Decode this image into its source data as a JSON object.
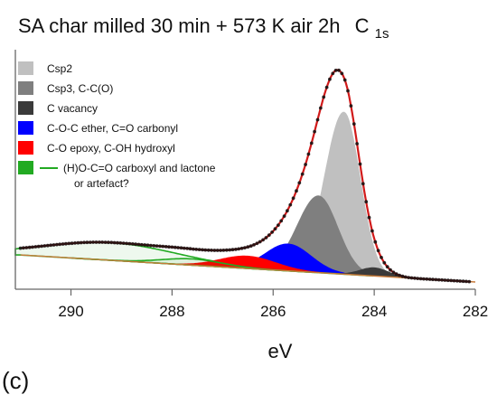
{
  "chart_data": {
    "type": "area",
    "title": "SA char milled 30 min + 573 K air 2h",
    "title_subscript": {
      "main": "C",
      "sub": "1s"
    },
    "panel_label": "(c)",
    "xlabel": "eV",
    "ylabel": "",
    "x_reversed": true,
    "xlim": [
      291.1,
      282.0
    ],
    "ylim": [
      0,
      1.0
    ],
    "x_ticks": [
      290,
      288,
      286,
      284,
      282
    ],
    "x_tick_labels": [
      "290",
      "288",
      "286",
      "284",
      "282"
    ],
    "y_ticks_visible": false,
    "grid": false,
    "legend_position": "top-left",
    "legend": [
      {
        "label": "Csp2",
        "color": "#c0c0c0",
        "marker": "box"
      },
      {
        "label": "Csp3, C-C(O)",
        "color": "#7f7f7f",
        "marker": "box"
      },
      {
        "label": "C vacancy",
        "color": "#3a3a3a",
        "marker": "box"
      },
      {
        "label": "C-O-C ether, C=O carbonyl",
        "color": "#0000ff",
        "marker": "box"
      },
      {
        "label": "C-O epoxy, C-OH hydroxyl",
        "color": "#ff0000",
        "marker": "box"
      },
      {
        "label": "(H)O-C=O carboxyl and lactone",
        "label_line2": "or artefact?",
        "color": "#22aa22",
        "marker": "box-and-line"
      }
    ],
    "background": {
      "x": [
        291.0,
        282.0
      ],
      "y": [
        0.13,
        0.0
      ]
    },
    "series": [
      {
        "name": "Csp2",
        "color": "#c0c0c0",
        "center": 284.6,
        "height": 0.78,
        "width_left": 0.38,
        "width_right": 0.32
      },
      {
        "name": "Csp3, C-C(O)",
        "color": "#7f7f7f",
        "center": 285.1,
        "height": 0.37,
        "width_left": 0.42,
        "width_right": 0.38
      },
      {
        "name": "C vacancy",
        "color": "#3a3a3a",
        "center": 284.0,
        "height": 0.04,
        "width_left": 0.28,
        "width_right": 0.28
      },
      {
        "name": "C-O-C ether, C=O carbonyl",
        "color": "#0000ff",
        "center": 285.7,
        "height": 0.13,
        "width_left": 0.45,
        "width_right": 0.45
      },
      {
        "name": "C-O epoxy, C-OH hydroxyl",
        "color": "#ff0000",
        "center": 286.5,
        "height": 0.06,
        "width_left": 0.55,
        "width_right": 0.55
      },
      {
        "name": "(H)O-C=O carboxyl and lactone",
        "color": "#22aa22",
        "center": 289.2,
        "height": 0.085,
        "width_left": 1.3,
        "width_right": 1.3
      },
      {
        "name": "(H)O-C=O carboxyl and lactone",
        "color": "#22aa22",
        "center": 287.6,
        "height": 0.03,
        "width_left": 0.6,
        "width_right": 0.6
      }
    ],
    "envelope": {
      "color": "#d11a1a",
      "marker_color": "#111111",
      "x_start": 291.0,
      "x_end": 282.1,
      "step": 0.06
    }
  }
}
